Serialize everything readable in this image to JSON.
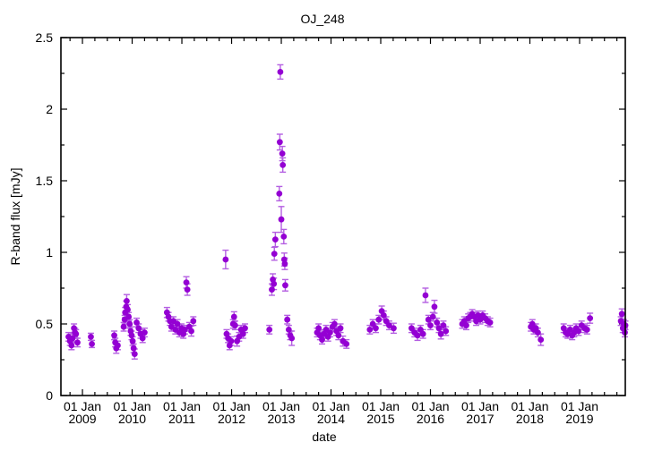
{
  "chart_data": {
    "type": "scatter",
    "title": "OJ_248",
    "xlabel": "date",
    "ylabel": "R-band flux [mJy]",
    "x_tick_prefix": "01 Jan",
    "x_ticks": [
      "2009",
      "2010",
      "2011",
      "2012",
      "2013",
      "2014",
      "2015",
      "2016",
      "2017",
      "2018",
      "2019"
    ],
    "y_ticks": [
      "0",
      "0.5",
      "1",
      "1.5",
      "2",
      "2.5"
    ],
    "xlim_years": [
      2008.567,
      2019.919
    ],
    "ylim": [
      0,
      2.5
    ],
    "x_minor_step_years": 0.25,
    "y_minor_step": 0.25,
    "grid": "off",
    "legend": "none",
    "point_color": "#9400d3",
    "errorbar_color": "#b45fe2",
    "axis_color": "#000000",
    "series": [
      {
        "name": "R-band flux",
        "marker": "filled-circle",
        "points_format": "[year, flux_mJy, err_mJy]",
        "points": [
          [
            2008.72,
            0.41,
            0.03
          ],
          [
            2008.75,
            0.38,
            0.03
          ],
          [
            2008.78,
            0.35,
            0.03
          ],
          [
            2008.8,
            0.4,
            0.03
          ],
          [
            2008.83,
            0.47,
            0.03
          ],
          [
            2008.85,
            0.44,
            0.03
          ],
          [
            2008.87,
            0.43,
            0.03
          ],
          [
            2008.9,
            0.37,
            0.03
          ],
          [
            2009.17,
            0.41,
            0.025
          ],
          [
            2009.19,
            0.36,
            0.025
          ],
          [
            2009.64,
            0.42,
            0.03
          ],
          [
            2009.66,
            0.37,
            0.03
          ],
          [
            2009.68,
            0.33,
            0.035
          ],
          [
            2009.71,
            0.35,
            0.03
          ],
          [
            2009.83,
            0.48,
            0.03
          ],
          [
            2009.85,
            0.53,
            0.03
          ],
          [
            2009.86,
            0.58,
            0.035
          ],
          [
            2009.88,
            0.62,
            0.04
          ],
          [
            2009.89,
            0.66,
            0.045
          ],
          [
            2009.91,
            0.6,
            0.035
          ],
          [
            2009.93,
            0.55,
            0.03
          ],
          [
            2009.95,
            0.5,
            0.03
          ],
          [
            2009.97,
            0.45,
            0.03
          ],
          [
            2009.99,
            0.42,
            0.03
          ],
          [
            2010.01,
            0.38,
            0.03
          ],
          [
            2010.03,
            0.33,
            0.03
          ],
          [
            2010.05,
            0.29,
            0.035
          ],
          [
            2010.09,
            0.51,
            0.03
          ],
          [
            2010.13,
            0.47,
            0.03
          ],
          [
            2010.17,
            0.43,
            0.03
          ],
          [
            2010.21,
            0.4,
            0.03
          ],
          [
            2010.25,
            0.44,
            0.03
          ],
          [
            2010.7,
            0.58,
            0.035
          ],
          [
            2010.73,
            0.55,
            0.03
          ],
          [
            2010.76,
            0.52,
            0.03
          ],
          [
            2010.79,
            0.48,
            0.03
          ],
          [
            2010.83,
            0.52,
            0.03
          ],
          [
            2010.87,
            0.46,
            0.03
          ],
          [
            2010.91,
            0.5,
            0.03
          ],
          [
            2010.95,
            0.44,
            0.03
          ],
          [
            2010.99,
            0.47,
            0.03
          ],
          [
            2011.03,
            0.43,
            0.03
          ],
          [
            2011.06,
            0.46,
            0.03
          ],
          [
            2011.09,
            0.79,
            0.04
          ],
          [
            2011.11,
            0.74,
            0.04
          ],
          [
            2011.15,
            0.48,
            0.03
          ],
          [
            2011.19,
            0.45,
            0.035
          ],
          [
            2011.23,
            0.52,
            0.03
          ],
          [
            2011.88,
            0.95,
            0.065
          ],
          [
            2011.9,
            0.43,
            0.03
          ],
          [
            2011.93,
            0.4,
            0.03
          ],
          [
            2011.96,
            0.35,
            0.03
          ],
          [
            2011.99,
            0.38,
            0.03
          ],
          [
            2012.03,
            0.5,
            0.03
          ],
          [
            2012.05,
            0.55,
            0.035
          ],
          [
            2012.07,
            0.49,
            0.03
          ],
          [
            2012.11,
            0.38,
            0.035
          ],
          [
            2012.15,
            0.41,
            0.03
          ],
          [
            2012.19,
            0.46,
            0.03
          ],
          [
            2012.23,
            0.43,
            0.03
          ],
          [
            2012.27,
            0.47,
            0.03
          ],
          [
            2012.76,
            0.46,
            0.03
          ],
          [
            2012.81,
            0.74,
            0.04
          ],
          [
            2012.83,
            0.81,
            0.04
          ],
          [
            2012.85,
            0.78,
            0.04
          ],
          [
            2012.86,
            0.99,
            0.045
          ],
          [
            2012.88,
            1.09,
            0.05
          ],
          [
            2012.96,
            1.41,
            0.05
          ],
          [
            2012.97,
            1.77,
            0.055
          ],
          [
            2012.98,
            2.26,
            0.05
          ],
          [
            2013.0,
            1.23,
            0.09
          ],
          [
            2013.02,
            1.69,
            0.05
          ],
          [
            2013.03,
            1.61,
            0.05
          ],
          [
            2013.05,
            1.11,
            0.05
          ],
          [
            2013.06,
            0.95,
            0.045
          ],
          [
            2013.07,
            0.92,
            0.04
          ],
          [
            2013.08,
            0.77,
            0.04
          ],
          [
            2013.12,
            0.53,
            0.03
          ],
          [
            2013.15,
            0.46,
            0.03
          ],
          [
            2013.18,
            0.42,
            0.03
          ],
          [
            2013.21,
            0.4,
            0.05
          ],
          [
            2013.72,
            0.44,
            0.03
          ],
          [
            2013.75,
            0.47,
            0.03
          ],
          [
            2013.78,
            0.42,
            0.03
          ],
          [
            2013.82,
            0.39,
            0.03
          ],
          [
            2013.86,
            0.43,
            0.03
          ],
          [
            2013.9,
            0.46,
            0.03
          ],
          [
            2013.94,
            0.41,
            0.03
          ],
          [
            2013.98,
            0.44,
            0.03
          ],
          [
            2014.03,
            0.48,
            0.03
          ],
          [
            2014.07,
            0.5,
            0.03
          ],
          [
            2014.11,
            0.45,
            0.03
          ],
          [
            2014.15,
            0.42,
            0.03
          ],
          [
            2014.19,
            0.47,
            0.03
          ],
          [
            2014.24,
            0.38,
            0.035
          ],
          [
            2014.31,
            0.36,
            0.03
          ],
          [
            2014.78,
            0.46,
            0.03
          ],
          [
            2014.84,
            0.5,
            0.03
          ],
          [
            2014.9,
            0.47,
            0.03
          ],
          [
            2014.96,
            0.53,
            0.03
          ],
          [
            2015.02,
            0.59,
            0.035
          ],
          [
            2015.06,
            0.56,
            0.03
          ],
          [
            2015.11,
            0.52,
            0.03
          ],
          [
            2015.17,
            0.49,
            0.03
          ],
          [
            2015.26,
            0.47,
            0.035
          ],
          [
            2015.62,
            0.47,
            0.03
          ],
          [
            2015.68,
            0.44,
            0.03
          ],
          [
            2015.74,
            0.42,
            0.035
          ],
          [
            2015.8,
            0.46,
            0.03
          ],
          [
            2015.85,
            0.43,
            0.03
          ],
          [
            2015.9,
            0.7,
            0.05
          ],
          [
            2015.96,
            0.53,
            0.03
          ],
          [
            2016.0,
            0.49,
            0.03
          ],
          [
            2016.05,
            0.55,
            0.03
          ],
          [
            2016.08,
            0.62,
            0.045
          ],
          [
            2016.13,
            0.51,
            0.03
          ],
          [
            2016.17,
            0.47,
            0.03
          ],
          [
            2016.21,
            0.43,
            0.035
          ],
          [
            2016.26,
            0.49,
            0.03
          ],
          [
            2016.31,
            0.45,
            0.03
          ],
          [
            2016.64,
            0.5,
            0.03
          ],
          [
            2016.68,
            0.52,
            0.03
          ],
          [
            2016.72,
            0.49,
            0.03
          ],
          [
            2016.76,
            0.54,
            0.03
          ],
          [
            2016.8,
            0.55,
            0.03
          ],
          [
            2016.84,
            0.57,
            0.03
          ],
          [
            2016.88,
            0.55,
            0.03
          ],
          [
            2016.92,
            0.52,
            0.03
          ],
          [
            2016.96,
            0.56,
            0.03
          ],
          [
            2017.0,
            0.53,
            0.03
          ],
          [
            2017.05,
            0.56,
            0.03
          ],
          [
            2017.1,
            0.54,
            0.03
          ],
          [
            2017.15,
            0.52,
            0.03
          ],
          [
            2017.2,
            0.51,
            0.03
          ],
          [
            2018.02,
            0.48,
            0.03
          ],
          [
            2018.05,
            0.5,
            0.03
          ],
          [
            2018.08,
            0.46,
            0.03
          ],
          [
            2018.12,
            0.47,
            0.03
          ],
          [
            2018.16,
            0.44,
            0.03
          ],
          [
            2018.22,
            0.39,
            0.04
          ],
          [
            2018.68,
            0.47,
            0.03
          ],
          [
            2018.72,
            0.44,
            0.03
          ],
          [
            2018.76,
            0.43,
            0.03
          ],
          [
            2018.81,
            0.46,
            0.03
          ],
          [
            2018.85,
            0.42,
            0.03
          ],
          [
            2018.89,
            0.44,
            0.03
          ],
          [
            2018.93,
            0.47,
            0.03
          ],
          [
            2018.98,
            0.45,
            0.03
          ],
          [
            2019.04,
            0.49,
            0.03
          ],
          [
            2019.1,
            0.47,
            0.03
          ],
          [
            2019.15,
            0.46,
            0.03
          ],
          [
            2019.21,
            0.54,
            0.035
          ],
          [
            2019.83,
            0.52,
            0.03
          ],
          [
            2019.85,
            0.57,
            0.035
          ],
          [
            2019.87,
            0.47,
            0.03
          ],
          [
            2019.89,
            0.5,
            0.03
          ],
          [
            2019.91,
            0.44,
            0.03
          ],
          [
            2019.92,
            0.49,
            0.03
          ]
        ]
      }
    ]
  }
}
